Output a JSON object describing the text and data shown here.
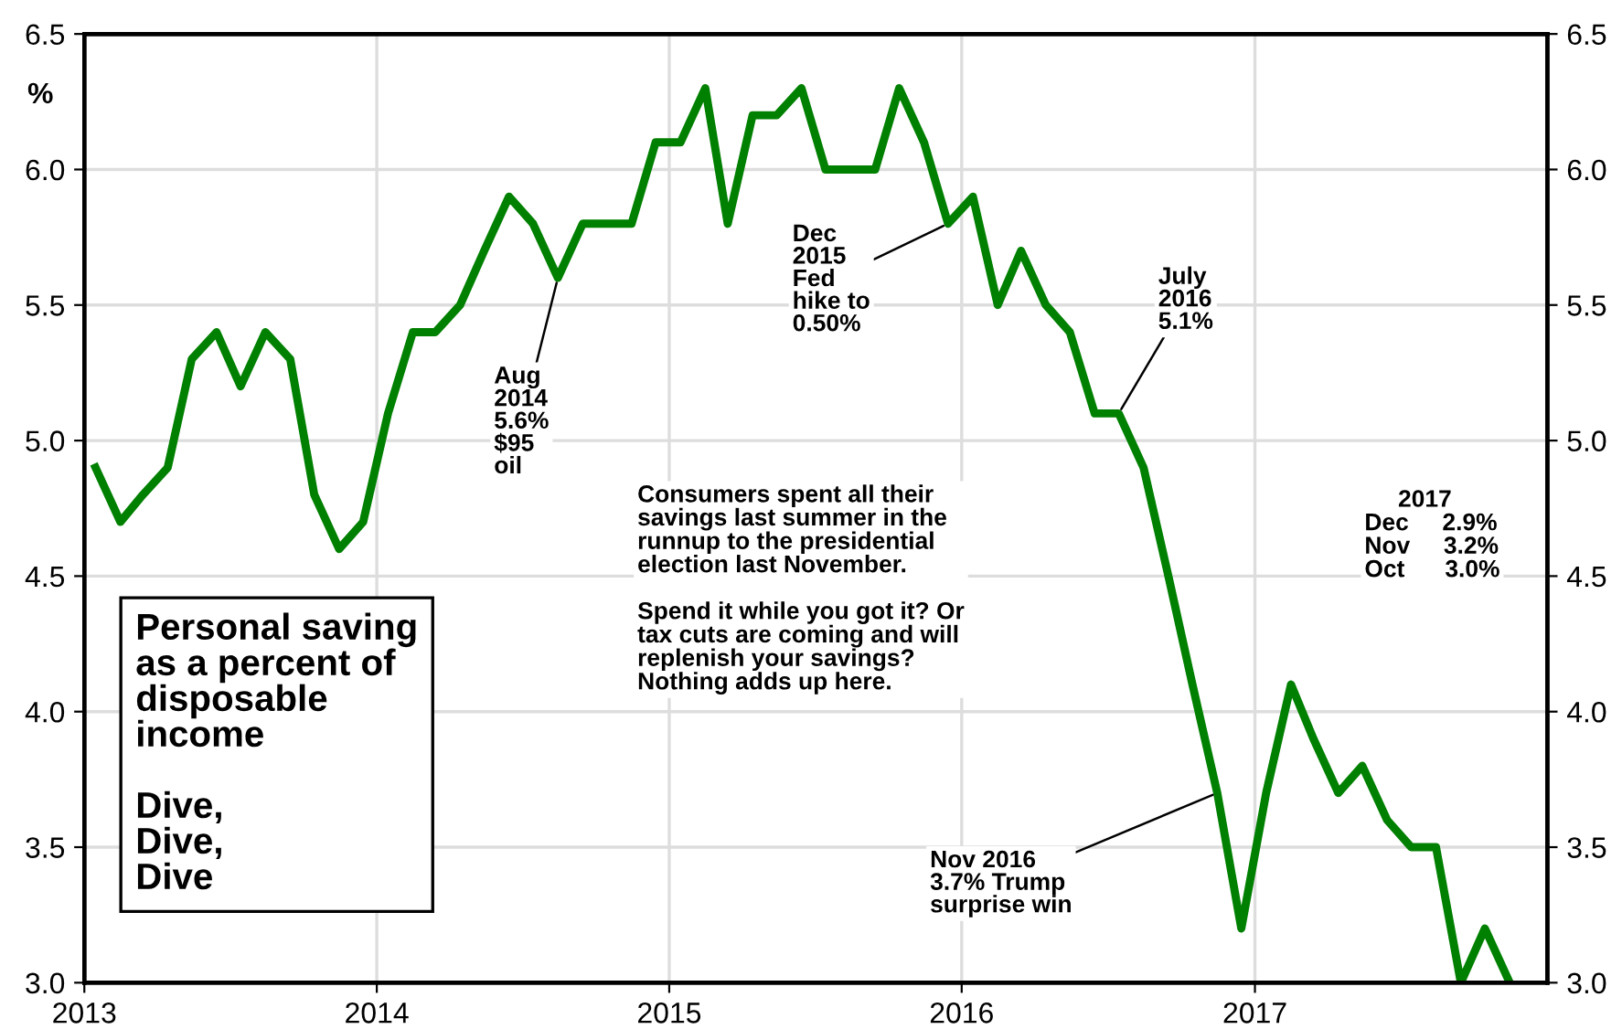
{
  "chart_data": {
    "type": "line",
    "title": "Personal saving\nas a percent of\ndisposable\nincome\n\nDive,\nDive,\nDive",
    "ylabel": "%",
    "x": [
      "2013-01-15",
      "2013-02-15",
      "2013-03-15",
      "2013-04-15",
      "2013-05-15",
      "2013-06-15",
      "2013-07-15",
      "2013-08-15",
      "2013-09-15",
      "2013-10-15",
      "2013-11-15",
      "2013-12-15",
      "2014-01-15",
      "2014-02-15",
      "2014-03-15",
      "2014-04-15",
      "2014-05-15",
      "2014-06-15",
      "2014-07-15",
      "2014-08-15",
      "2014-09-15",
      "2014-10-15",
      "2014-11-15",
      "2014-12-15",
      "2015-01-15",
      "2015-02-15",
      "2015-03-15",
      "2015-04-15",
      "2015-05-15",
      "2015-06-15",
      "2015-07-15",
      "2015-08-15",
      "2015-09-15",
      "2015-10-15",
      "2015-11-15",
      "2015-12-15",
      "2016-01-15",
      "2016-02-15",
      "2016-03-15",
      "2016-04-15",
      "2016-05-15",
      "2016-06-15",
      "2016-07-15",
      "2016-08-15",
      "2016-09-15",
      "2016-10-15",
      "2016-11-15",
      "2016-12-15",
      "2017-01-15",
      "2017-02-15",
      "2017-03-15",
      "2017-04-15",
      "2017-05-15",
      "2017-06-15",
      "2017-07-15",
      "2017-08-15",
      "2017-09-15",
      "2017-10-15",
      "2017-11-15"
    ],
    "series": [
      {
        "color": "#008000",
        "values": [
          4.9,
          4.7,
          4.8,
          4.9,
          5.3,
          5.4,
          5.2,
          5.4,
          5.3,
          4.8,
          4.6,
          4.7,
          5.1,
          5.4,
          5.4,
          5.5,
          5.7,
          5.9,
          5.8,
          5.6,
          5.8,
          5.8,
          5.8,
          6.1,
          6.1,
          6.3,
          5.8,
          6.2,
          6.2,
          6.3,
          6.0,
          6.0,
          6.0,
          6.3,
          6.1,
          5.8,
          5.9,
          5.5,
          5.7,
          5.5,
          5.4,
          5.1,
          5.1,
          4.9,
          4.5,
          4.1,
          3.7,
          3.2,
          3.7,
          4.1,
          3.9,
          3.7,
          3.8,
          3.6,
          3.5,
          3.5,
          3.0,
          3.2,
          3.0
        ]
      }
    ],
    "xlim": [
      "2013",
      "2018"
    ],
    "xticks": [
      {
        "value": "2013",
        "label": "2013"
      },
      {
        "value": "2014",
        "label": "2014"
      },
      {
        "value": "2015",
        "label": "2015"
      },
      {
        "value": "2016",
        "label": "2016"
      },
      {
        "value": "2017",
        "label": "2017"
      }
    ],
    "ylim": [
      3.0,
      6.5
    ],
    "yticks": [
      {
        "value": 3.0,
        "label": "3.0"
      },
      {
        "value": 3.5,
        "label": "3.5"
      },
      {
        "value": 4.0,
        "label": "4.0"
      },
      {
        "value": 4.5,
        "label": "4.5"
      },
      {
        "value": 5.0,
        "label": "5.0"
      },
      {
        "value": 5.5,
        "label": "5.5"
      },
      {
        "value": 6.0,
        "label": "6.0"
      },
      {
        "value": 6.5,
        "label": "6.5"
      }
    ],
    "y2lim": [
      3.0,
      6.5
    ],
    "y2ticks": [
      {
        "value": 3.0,
        "label": "3.0"
      },
      {
        "value": 3.5,
        "label": "3.5"
      },
      {
        "value": 4.0,
        "label": "4.0"
      },
      {
        "value": 4.5,
        "label": "4.5"
      },
      {
        "value": 5.0,
        "label": "5.0"
      },
      {
        "value": 5.5,
        "label": "5.5"
      },
      {
        "value": 6.0,
        "label": "6.0"
      },
      {
        "value": 6.5,
        "label": "6.5"
      }
    ],
    "grid": true,
    "marker": "none",
    "line_style": "solid",
    "annotations": [
      {
        "text": "Aug\n2014\n5.6%\n$95\noil",
        "x": "2014-08-15",
        "y": 5.6
      },
      {
        "text": "Dec\n2015\nFed\nhike to\n0.50%",
        "x": "2015-12-15",
        "y": 5.8
      },
      {
        "text": "July\n2016\n5.1%",
        "x": "2016-07-15",
        "y": 5.1
      },
      {
        "text": "Nov 2016\n3.7% Trump\nsurprise win",
        "x": "2016-11-15",
        "y": 3.7
      },
      "Consumers spent all their\nsavings last summer in the\nrunnup to the presidential\nelection last November.\n\nSpend it while you got it? Or\ntax cuts are coming and will\nreplenish your savings?\nNothing adds up here.",
      "     2017\nDec     2.9%\nNov     3.2%\nOct      3.0%"
    ]
  }
}
